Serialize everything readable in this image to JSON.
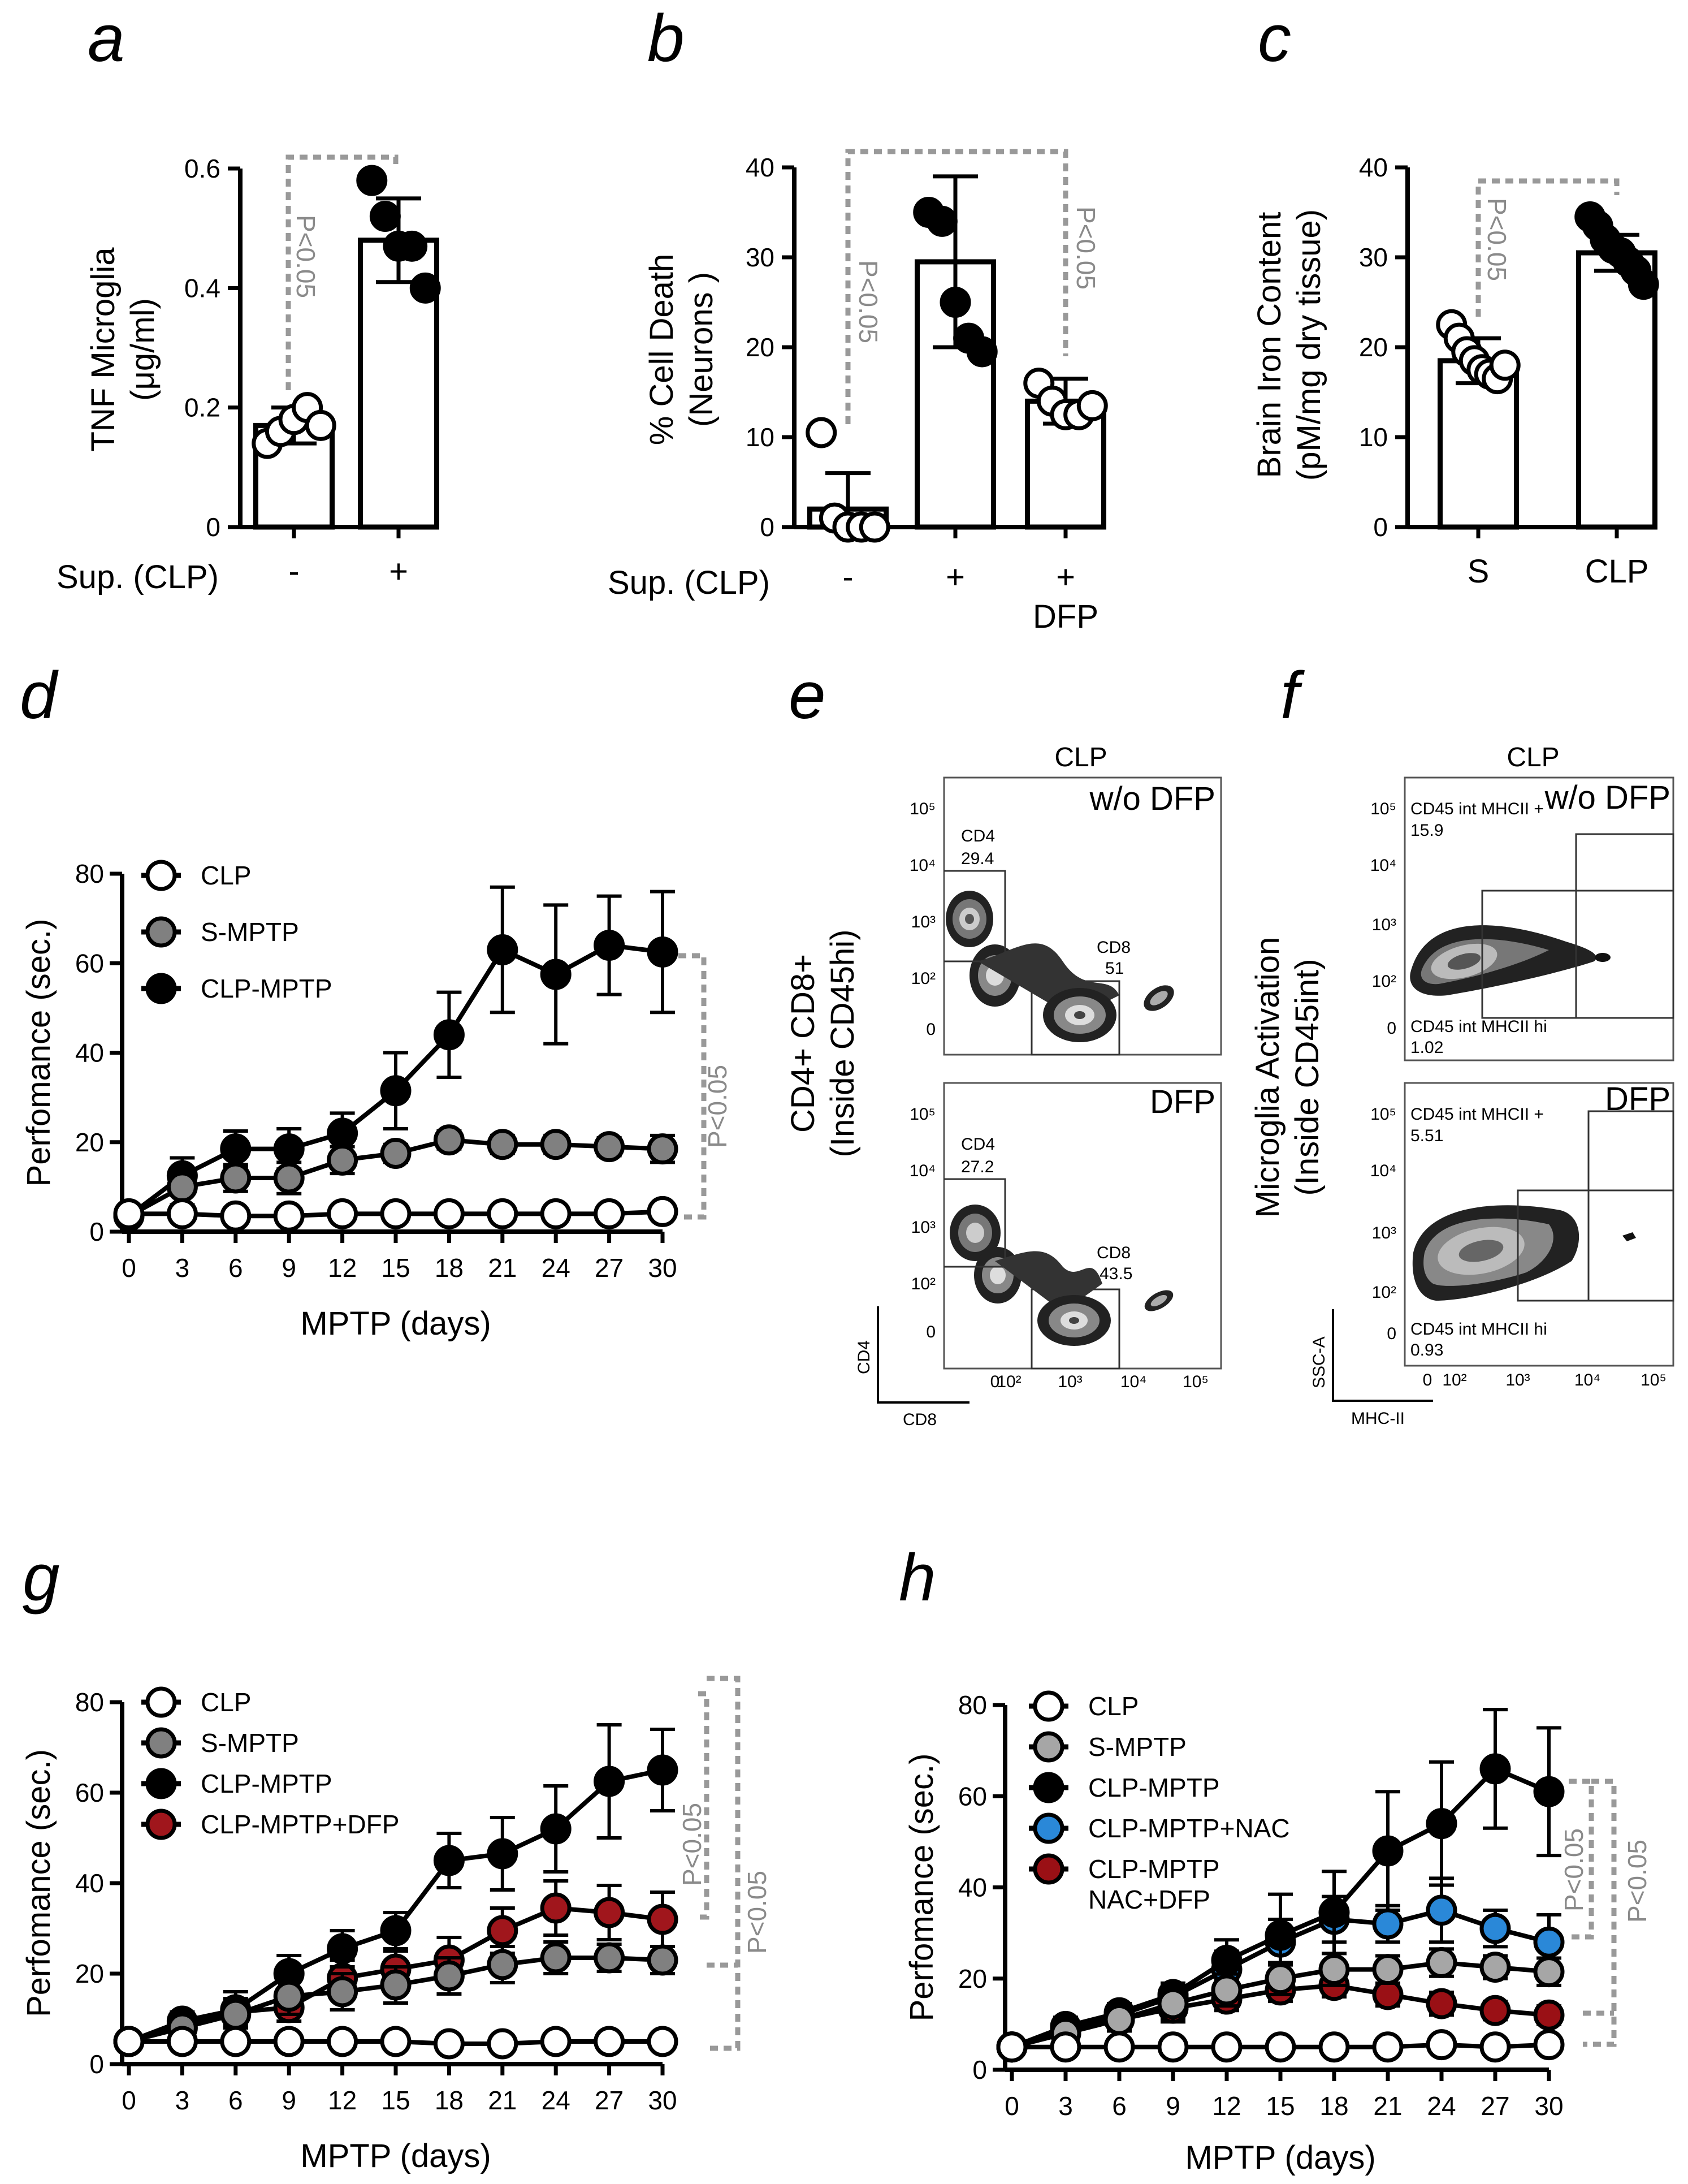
{
  "figure": {
    "panels": {
      "a": {
        "label": "a",
        "ylabel1": "TNF Microglia",
        "ylabel2": "(μg/ml)",
        "row_label": "Sup. (CLP)",
        "p_value": "P<0.05"
      },
      "b": {
        "label": "b",
        "ylabel1": "% Cell Death",
        "ylabel2": "(Neurons )",
        "row_label": "Sup. (CLP)",
        "sub_label": "DFP",
        "p_value_1": "P<0.05",
        "p_value_2": "P<0.05"
      },
      "c": {
        "label": "c",
        "ylabel1": "Brain Iron Content",
        "ylabel2": "(pM/mg dry tissue)",
        "p_value": "P<0.05"
      },
      "d": {
        "label": "d",
        "p_value": "P<0.05"
      },
      "e": {
        "label": "e",
        "title": "CLP",
        "ylabel1": "CD4+ CD8+",
        "ylabel2": "(Inside CD45hi)",
        "top": {
          "tag": "w/o DFP",
          "gate1_name": "CD4",
          "gate1_value": "29.4",
          "gate2_name": "CD8",
          "gate2_value": "51"
        },
        "bottom": {
          "tag": "DFP",
          "gate1_name": "CD4",
          "gate1_value": "27.2",
          "gate2_name": "CD8",
          "gate2_value": "43.5"
        },
        "x_axis_name": "CD8",
        "y_axis_name": "CD4"
      },
      "f": {
        "label": "f",
        "title": "CLP",
        "ylabel1": "Microglia Activation",
        "ylabel2": "(Inside CD45int)",
        "top": {
          "tag": "w/o DFP",
          "gate1_name": "CD45 int MHCII +",
          "gate1_value": "15.9",
          "gate2_name": "CD45 int MHCII hi",
          "gate2_value": "1.02"
        },
        "bottom": {
          "tag": "DFP",
          "gate1_name": "CD45 int MHCII +",
          "gate1_value": "5.51",
          "gate2_name": "CD45 int MHCII hi",
          "gate2_value": "0.93"
        },
        "x_axis_name": "MHC-II",
        "y_axis_name": "SSC-A"
      },
      "g": {
        "label": "g",
        "p_value_1": "P<0.05",
        "p_value_2": "P<0.05"
      },
      "h": {
        "label": "h",
        "p_value_1": "P<0.05",
        "p_value_2": "P<0.05"
      }
    },
    "flow_ticks": {
      "e_y": [
        "10⁵",
        "10⁴",
        "10³",
        "10²",
        "0"
      ],
      "e_x": [
        "0",
        "10²",
        "10³",
        "10⁴",
        "10⁵"
      ],
      "f_y": [
        "10⁵",
        "10⁴",
        "10³",
        "10²",
        "0"
      ],
      "f_x": [
        "0",
        "10²",
        "10³",
        "10⁴",
        "10⁵"
      ]
    }
  },
  "chart_data": [
    {
      "id": "a",
      "type": "bar",
      "categories": [
        "-",
        "+"
      ],
      "values": [
        0.17,
        0.48
      ],
      "errors": [
        0.03,
        0.07
      ],
      "points": [
        [
          0.14,
          0.16,
          0.18,
          0.2,
          0.17
        ],
        [
          0.58,
          0.52,
          0.47,
          0.47,
          0.4
        ]
      ],
      "fills": [
        "#ffffff",
        "#000000"
      ],
      "ylabel": "TNF Microglia (μg/ml)",
      "ylim": [
        0,
        0.6
      ],
      "yticks": [
        0,
        0.2,
        0.4,
        0.6
      ],
      "ytick_labels": [
        "0",
        "0.2",
        "0.4",
        "0.6"
      ]
    },
    {
      "id": "b",
      "type": "bar",
      "categories": [
        "-",
        "+",
        "+"
      ],
      "values": [
        2,
        29.5,
        14
      ],
      "errors": [
        4,
        9.5,
        2.5
      ],
      "points": [
        [
          10.5,
          1,
          0,
          0,
          0
        ],
        [
          35,
          34,
          25,
          21,
          19.5
        ],
        [
          16,
          14,
          12.5,
          12.5,
          13.5
        ]
      ],
      "fills": [
        "#ffffff",
        "#000000",
        "#ffffff"
      ],
      "ylabel": "% Cell Death (Neurons )",
      "ylim": [
        0,
        40
      ],
      "yticks": [
        0,
        10,
        20,
        30,
        40
      ],
      "ytick_labels": [
        "0",
        "10",
        "20",
        "30",
        "40"
      ]
    },
    {
      "id": "c",
      "type": "bar",
      "categories": [
        "S",
        "CLP"
      ],
      "values": [
        18.5,
        30.5
      ],
      "errors": [
        2.5,
        2
      ],
      "points": [
        [
          22.5,
          21,
          19.5,
          18.5,
          17.5,
          17,
          16.5,
          18
        ],
        [
          34.5,
          33.5,
          32,
          31,
          30.5,
          29.5,
          28.5,
          27
        ]
      ],
      "fills": [
        "#ffffff",
        "#000000"
      ],
      "ylabel": "Brain Iron Content (pM/mg dry tissue)",
      "ylim": [
        0,
        40
      ],
      "yticks": [
        0,
        10,
        20,
        30,
        40
      ],
      "ytick_labels": [
        "0",
        "10",
        "20",
        "30",
        "40"
      ]
    },
    {
      "id": "d",
      "type": "line",
      "x": [
        0,
        3,
        6,
        9,
        12,
        15,
        18,
        21,
        24,
        27,
        30
      ],
      "xlabel": "MPTP (days)",
      "ylabel": "Perfomance (sec.)",
      "ylim": [
        0,
        80
      ],
      "xlim": [
        0,
        30
      ],
      "yticks": [
        0,
        20,
        40,
        60,
        80
      ],
      "ytick_labels": [
        "0",
        "20",
        "40",
        "60",
        "80"
      ],
      "xtick_labels": [
        "0",
        "3",
        "6",
        "9",
        "12",
        "15",
        "18",
        "21",
        "24",
        "27",
        "30"
      ],
      "series": [
        {
          "name": "CLP",
          "color": "#ffffff",
          "values": [
            4,
            4,
            3.5,
            3.5,
            4,
            4,
            4,
            4,
            4,
            4,
            4.5
          ],
          "errors": [
            0.5,
            0.5,
            0.5,
            0.5,
            0.5,
            0.5,
            0.5,
            0.5,
            0.5,
            0.5,
            0.5
          ]
        },
        {
          "name": "S-MPTP",
          "color": "#808080",
          "values": [
            3.5,
            10,
            12,
            12,
            16,
            17.5,
            20.5,
            19.5,
            19.5,
            19,
            18.5
          ],
          "errors": [
            0.5,
            4,
            3,
            3.5,
            3,
            2,
            2,
            2,
            2,
            2,
            3
          ]
        },
        {
          "name": "CLP-MPTP",
          "color": "#000000",
          "values": [
            3.5,
            12.5,
            18.5,
            18.5,
            22,
            31.5,
            44,
            63,
            57.5,
            64,
            62.5
          ],
          "errors": [
            0.5,
            4,
            4,
            4.5,
            4.5,
            8.5,
            9.5,
            14,
            15.5,
            11,
            13.5
          ]
        }
      ]
    },
    {
      "id": "g",
      "type": "line",
      "x": [
        0,
        3,
        6,
        9,
        12,
        15,
        18,
        21,
        24,
        27,
        30
      ],
      "xlabel": "MPTP (days)",
      "ylabel": "Perfomance (sec.)",
      "ylim": [
        0,
        80
      ],
      "xlim": [
        0,
        30
      ],
      "yticks": [
        0,
        20,
        40,
        60,
        80
      ],
      "ytick_labels": [
        "0",
        "20",
        "40",
        "60",
        "80"
      ],
      "xtick_labels": [
        "0",
        "3",
        "6",
        "9",
        "12",
        "15",
        "18",
        "21",
        "24",
        "27",
        "30"
      ],
      "series": [
        {
          "name": "CLP",
          "color": "#ffffff",
          "values": [
            5,
            5,
            5,
            5,
            5,
            5,
            4.5,
            4.5,
            5,
            5,
            5
          ],
          "errors": [
            0.5,
            0.5,
            0.5,
            0.5,
            0.5,
            0.5,
            0.5,
            0.5,
            0.5,
            0.5,
            0.5
          ]
        },
        {
          "name": "S-MPTP",
          "color": "#808080",
          "values": [
            5,
            8,
            11,
            15,
            16,
            17.5,
            19.5,
            22,
            23.5,
            23.5,
            23
          ],
          "errors": [
            0.5,
            2,
            3,
            4,
            4,
            4,
            4,
            4,
            3.5,
            3,
            3
          ]
        },
        {
          "name": "CLP-MPTP",
          "color": "#000000",
          "values": [
            5,
            9.5,
            12,
            20,
            25.5,
            29.5,
            45,
            46.5,
            52,
            62.5,
            65
          ],
          "errors": [
            0.5,
            2,
            4,
            4,
            4,
            4,
            6,
            8,
            9.5,
            12.5,
            9
          ]
        },
        {
          "name": "CLP-MPTP+DFP",
          "color": "#a0161c",
          "values": [
            5,
            9,
            11.5,
            12.5,
            19,
            21,
            23,
            29.5,
            34.5,
            33.5,
            32
          ],
          "errors": [
            0.5,
            2,
            3,
            3,
            4,
            4,
            5,
            5,
            6,
            6,
            6
          ]
        }
      ]
    },
    {
      "id": "h",
      "type": "line",
      "x": [
        0,
        3,
        6,
        9,
        12,
        15,
        18,
        21,
        24,
        27,
        30
      ],
      "xlabel": "MPTP (days)",
      "ylabel": "Perfomance (sec.)",
      "ylim": [
        0,
        80
      ],
      "xlim": [
        0,
        30
      ],
      "yticks": [
        0,
        20,
        40,
        60,
        80
      ],
      "ytick_labels": [
        "0",
        "20",
        "40",
        "60",
        "80"
      ],
      "xtick_labels": [
        "0",
        "3",
        "6",
        "9",
        "12",
        "15",
        "18",
        "21",
        "24",
        "27",
        "30"
      ],
      "series": [
        {
          "name": "CLP",
          "color": "#ffffff",
          "values": [
            5,
            5,
            5,
            5,
            5,
            5,
            5,
            5,
            5.5,
            5,
            5.5
          ],
          "errors": [
            0.5,
            0.5,
            0.5,
            0.5,
            0.5,
            0.5,
            0.5,
            0.5,
            0.5,
            0.5,
            0.5
          ]
        },
        {
          "name": "S-MPTP",
          "color": "#a6a6a6",
          "values": [
            5,
            8,
            11,
            14.5,
            17.5,
            20,
            22,
            22,
            23.5,
            22.5,
            21.5
          ],
          "errors": [
            0.5,
            2,
            2.5,
            4,
            3.5,
            3.5,
            3.5,
            3,
            3,
            2.5,
            3
          ]
        },
        {
          "name": "CLP-MPTP",
          "color": "#000000",
          "values": [
            5,
            9.5,
            12.5,
            16.5,
            24,
            29.5,
            34.5,
            48,
            54,
            66,
            61
          ],
          "errors": [
            0.5,
            2,
            2,
            2.5,
            4.5,
            9,
            9,
            13,
            13.5,
            13,
            14
          ]
        },
        {
          "name": "CLP-MPTP+NAC",
          "color": "#2a88d8",
          "values": [
            5,
            9,
            12,
            16,
            22,
            28,
            33,
            32,
            35,
            31,
            28
          ],
          "errors": [
            0.5,
            2,
            2,
            3,
            4,
            5,
            5,
            4,
            7,
            4,
            6
          ]
        },
        {
          "name": "CLP-MPTP NAC+DFP",
          "legend_lines": [
            "CLP-MPTP",
            "NAC+DFP"
          ],
          "color": "#9a1015",
          "values": [
            5,
            8,
            11,
            13.5,
            15.5,
            17.5,
            18.5,
            16.5,
            14.5,
            13,
            12
          ],
          "errors": [
            0.5,
            2,
            2,
            2.5,
            2.5,
            2.5,
            2.5,
            2.5,
            2.5,
            2,
            2
          ]
        }
      ]
    }
  ]
}
